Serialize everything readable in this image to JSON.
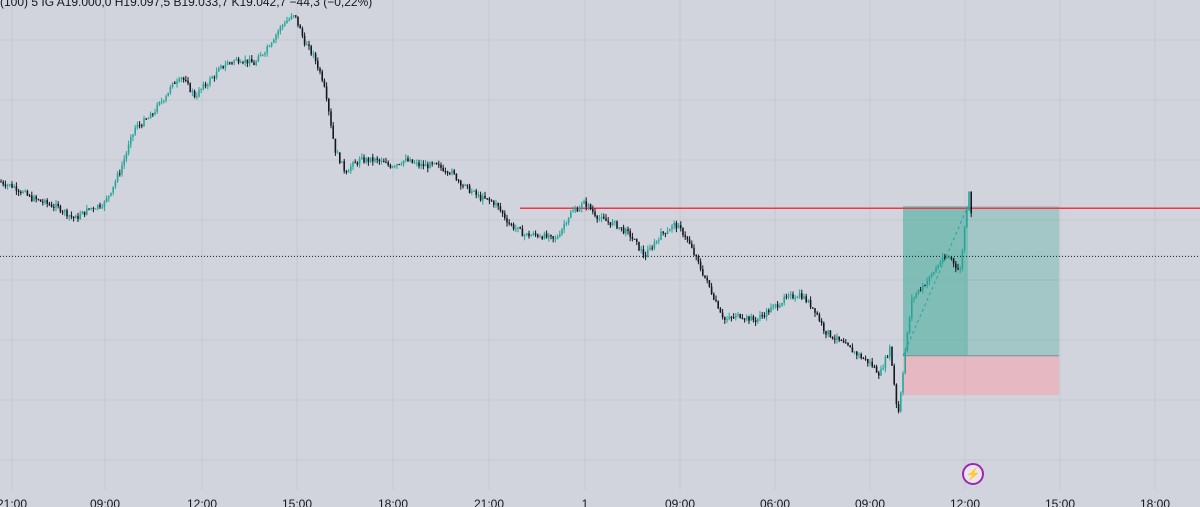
{
  "header": {
    "legend_text": "(100)  5  IG  A19.000,0  H19.097,5  B19.033,7  K19.042,7  −44,3 (−0,22%)"
  },
  "badge": {
    "icon": "lightning-bolt-icon",
    "glyph": "⚡"
  },
  "chart_data": {
    "type": "candlestick",
    "title": "",
    "xlabel": "",
    "ylabel": "",
    "x_tick_labels": [
      "21:00",
      "09:00",
      "12:00",
      "15:00",
      "18:00",
      "21:00",
      "1",
      "09:00",
      "06:00",
      "09:00",
      "12:00",
      "15:00",
      "18:00"
    ],
    "grid": true,
    "ylim": [
      18960,
      19400
    ],
    "price_path": [
      [
        0,
        19230
      ],
      [
        15,
        19225
      ],
      [
        30,
        19215
      ],
      [
        45,
        19210
      ],
      [
        60,
        19205
      ],
      [
        75,
        19195
      ],
      [
        90,
        19205
      ],
      [
        105,
        19210
      ],
      [
        120,
        19240
      ],
      [
        135,
        19280
      ],
      [
        150,
        19290
      ],
      [
        165,
        19310
      ],
      [
        180,
        19330
      ],
      [
        195,
        19310
      ],
      [
        210,
        19325
      ],
      [
        225,
        19340
      ],
      [
        240,
        19345
      ],
      [
        255,
        19340
      ],
      [
        270,
        19360
      ],
      [
        285,
        19380
      ],
      [
        295,
        19385
      ],
      [
        305,
        19360
      ],
      [
        315,
        19345
      ],
      [
        325,
        19320
      ],
      [
        335,
        19260
      ],
      [
        345,
        19240
      ],
      [
        360,
        19250
      ],
      [
        375,
        19250
      ],
      [
        390,
        19245
      ],
      [
        405,
        19250
      ],
      [
        420,
        19245
      ],
      [
        435,
        19245
      ],
      [
        450,
        19240
      ],
      [
        465,
        19225
      ],
      [
        480,
        19215
      ],
      [
        495,
        19210
      ],
      [
        510,
        19190
      ],
      [
        525,
        19180
      ],
      [
        540,
        19180
      ],
      [
        555,
        19175
      ],
      [
        570,
        19200
      ],
      [
        585,
        19210
      ],
      [
        600,
        19195
      ],
      [
        615,
        19190
      ],
      [
        630,
        19180
      ],
      [
        645,
        19160
      ],
      [
        660,
        19180
      ],
      [
        675,
        19190
      ],
      [
        685,
        19180
      ],
      [
        700,
        19150
      ],
      [
        715,
        19120
      ],
      [
        725,
        19100
      ],
      [
        740,
        19105
      ],
      [
        755,
        19100
      ],
      [
        770,
        19110
      ],
      [
        785,
        19120
      ],
      [
        800,
        19125
      ],
      [
        815,
        19110
      ],
      [
        825,
        19090
      ],
      [
        840,
        19080
      ],
      [
        855,
        19070
      ],
      [
        870,
        19060
      ],
      [
        880,
        19050
      ],
      [
        890,
        19075
      ],
      [
        898,
        19010
      ],
      [
        905,
        19070
      ],
      [
        912,
        19120
      ],
      [
        920,
        19130
      ],
      [
        930,
        19140
      ],
      [
        940,
        19155
      ],
      [
        950,
        19160
      ],
      [
        960,
        19145
      ],
      [
        966,
        19200
      ],
      [
        970,
        19230
      ],
      [
        973,
        19160
      ]
    ],
    "horizontal_line": {
      "price": 19205,
      "color": "#f23645"
    },
    "last_price_line": {
      "price": 19160,
      "style": "dotted",
      "color": "#131722"
    },
    "position_tool": {
      "type": "long",
      "entry": 19067,
      "target": 19207,
      "stop": 19030,
      "profit_color": "#4caf9e",
      "stop_color": "#f7a1ad"
    },
    "up_color": "#26a69a",
    "down_color": "#131722"
  }
}
